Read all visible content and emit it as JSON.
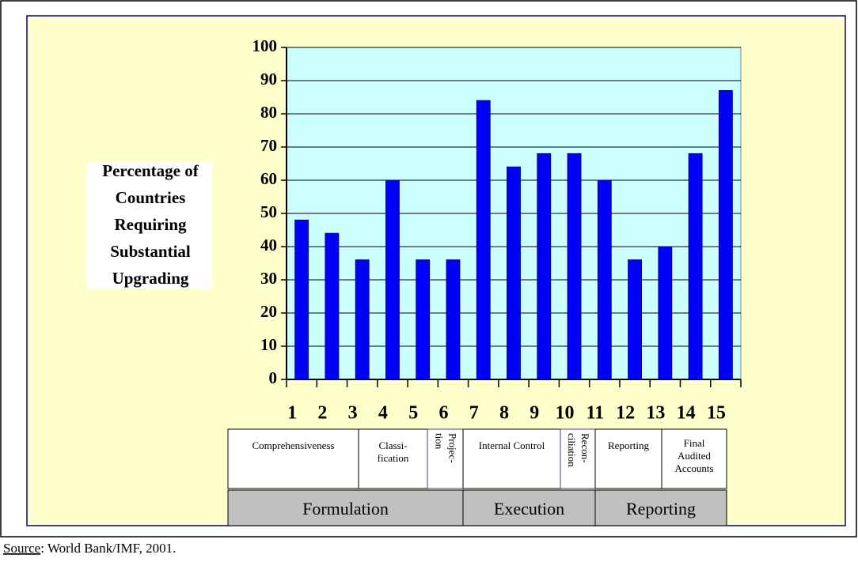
{
  "chart_data": {
    "type": "bar",
    "y_axis_label": [
      "Percentage of",
      "Countries",
      "Requiring",
      "Substantial",
      "Upgrading"
    ],
    "categories": [
      "1",
      "2",
      "3",
      "4",
      "5",
      "6",
      "7",
      "8",
      "9",
      "10",
      "11",
      "12",
      "13",
      "14",
      "15"
    ],
    "values": [
      48,
      44,
      36,
      60,
      36,
      36,
      84,
      64,
      68,
      68,
      60,
      36,
      40,
      68,
      87
    ],
    "color": "#0000ff",
    "ylim": [
      0,
      100
    ],
    "yticks": [
      0,
      10,
      20,
      30,
      40,
      50,
      60,
      70,
      80,
      90,
      100
    ],
    "grid": true,
    "subgroups": [
      {
        "lines": [
          "Comprehensiveness"
        ]
      },
      {
        "lines": [
          "Classi-",
          "fication"
        ]
      },
      {
        "lines": [
          "Projec-",
          "tion"
        ],
        "rotated": true
      },
      {
        "lines": [
          "Internal Control"
        ]
      },
      {
        "lines": [
          "Recon-",
          "ciliation"
        ],
        "rotated": true
      },
      {
        "lines": [
          "Reporting"
        ]
      },
      {
        "lines": [
          "Final",
          "Audited",
          "Accounts"
        ]
      }
    ],
    "groups": [
      "Formulation",
      "Execution",
      "Reporting"
    ]
  },
  "source_label": "Source",
  "source_text": ": World Bank/IMF, 2001."
}
